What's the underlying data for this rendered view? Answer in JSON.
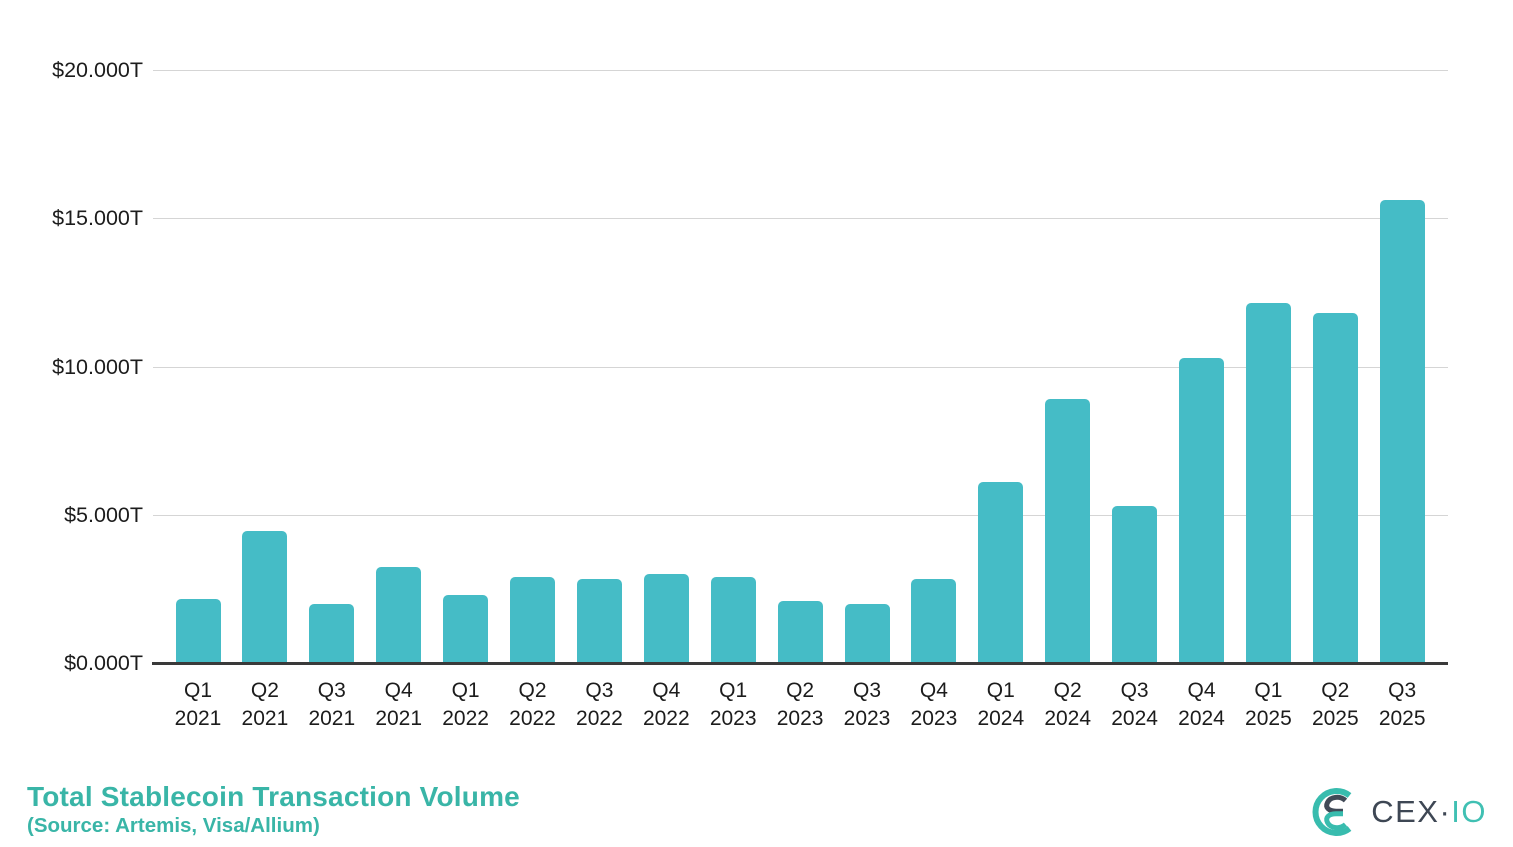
{
  "chart_data": {
    "type": "bar",
    "title": "Total Stablecoin Transaction Volume",
    "source_note": "(Source: Artemis, Visa/Allium)",
    "categories": [
      "Q1 2021",
      "Q2 2021",
      "Q3 2021",
      "Q4 2021",
      "Q1 2022",
      "Q2 2022",
      "Q3 2022",
      "Q4 2022",
      "Q1 2023",
      "Q2 2023",
      "Q3 2023",
      "Q4 2023",
      "Q1 2024",
      "Q2 2024",
      "Q3 2024",
      "Q4 2024",
      "Q1 2025",
      "Q2 2025",
      "Q3 2025"
    ],
    "values": [
      2.15,
      4.45,
      2.0,
      3.25,
      2.3,
      2.9,
      2.85,
      3.0,
      2.9,
      2.1,
      2.0,
      2.85,
      6.1,
      8.9,
      5.3,
      10.3,
      12.15,
      11.8,
      15.6
    ],
    "unit": "trillion USD",
    "ylim": [
      0,
      20
    ],
    "y_tick_values": [
      0,
      5,
      10,
      15,
      20
    ],
    "y_tick_labels": [
      "$0.000T",
      "$5.000T",
      "$10.000T",
      "$15.000T",
      "$20.000T"
    ],
    "grid": "horizontal",
    "legend": "none",
    "bar_color": "#45BCC6"
  },
  "footer": {
    "title": "Total Stablecoin Transaction Volume",
    "source": "(Source: Artemis, Visa/Allium)"
  },
  "logo": {
    "primary": "CEX",
    "separator": "·",
    "secondary": "IO"
  },
  "colors": {
    "bar": "#45BCC6",
    "title_teal": "#39B5A7",
    "logo_dark": "#414A57",
    "logo_teal": "#38BCAE",
    "gridline": "#D5D5D5",
    "axis_line": "#3A3A3A",
    "tick_label": "#1C1C1C"
  }
}
